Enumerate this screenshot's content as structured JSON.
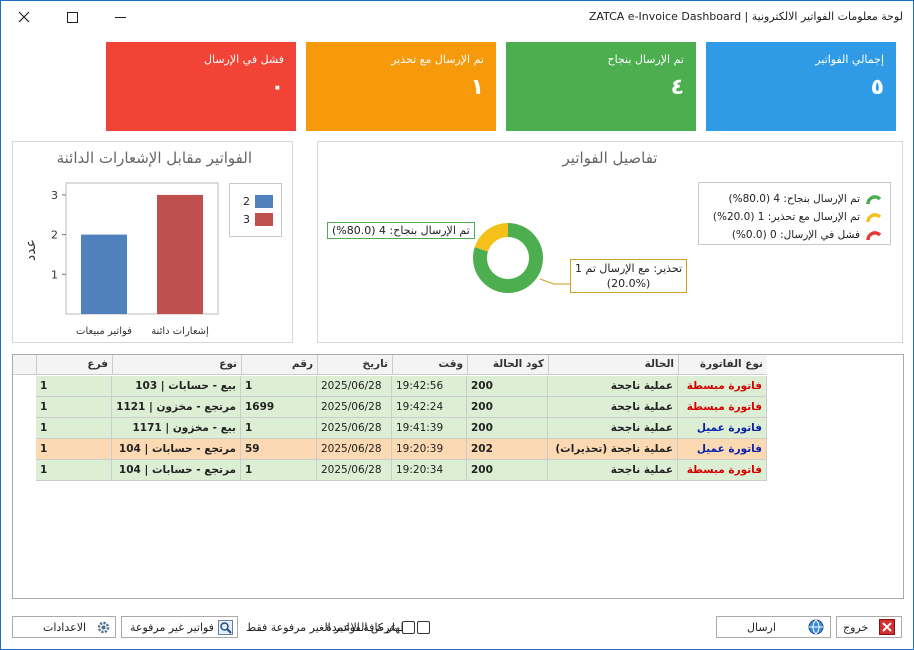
{
  "window": {
    "title": "ZATCA e-Invoice Dashboard  |  لوحة معلومات الفواتير الالكترونية"
  },
  "cards": {
    "total": {
      "label": "إجمالي الفواتير",
      "value": "٥"
    },
    "ok": {
      "label": "تم الإرسال بنجاح",
      "value": "٤"
    },
    "warn": {
      "label": "تم الإرسال مع تحذير",
      "value": "١"
    },
    "fail": {
      "label": "فشل في الإرسال",
      "value": "٠"
    }
  },
  "colors": {
    "total": "#2f9be6",
    "ok": "#4cae4e",
    "warn": "#f6990b",
    "fail": "#f14336",
    "bar_blue": "#4f81bd",
    "bar_red": "#c0504d",
    "pie_green": "#4cae4e",
    "pie_yellow": "#f3c119",
    "pie_red": "#e53935",
    "row_ok": "#dcefd4",
    "row_warn": "#fbd9b2"
  },
  "bar_chart": {
    "title": "الفواتير مقابل الإشعارات الدائنة",
    "ylabel": "عدد",
    "legend": [
      "2",
      "3"
    ],
    "chart_data": {
      "type": "bar",
      "categories": [
        "فواتير مبيعات",
        "إشعارات دائنة"
      ],
      "values": [
        2,
        3
      ],
      "ylim": [
        0,
        3.3
      ],
      "yticks": [
        "1",
        "2",
        "3"
      ],
      "grid": false,
      "legend_position": "right"
    }
  },
  "pie_chart": {
    "title": "تفاصيل الفواتير",
    "legend": [
      {
        "label": "تم الإرسال بنجاح: 4 (80.0%)",
        "icon": "green-arc-icon"
      },
      {
        "label": "تم الإرسال مع تحذير: 1 (20.0%)",
        "icon": "yellow-arc-icon"
      },
      {
        "label": "فشل في الإرسال: 0 (0.0%)",
        "icon": "red-arc-icon"
      }
    ],
    "callout_ok": "تم الإرسال بنجاح: 4 (80.0%)",
    "callout_warn_line1": "1 تحذير: مع الإرسال تم",
    "callout_warn_line2": "(20.0%)",
    "chart_data": {
      "type": "pie",
      "categories": [
        "تم الإرسال بنجاح",
        "تم الإرسال مع تحذير",
        "فشل في الإرسال"
      ],
      "values": [
        4,
        1,
        0
      ]
    }
  },
  "grid": {
    "columns": [
      "نوع الفاتورة",
      "الحالة",
      "كود الحالة",
      "وقت",
      "تاريخ",
      "رقم",
      "نوع",
      "فرع"
    ],
    "rows": [
      {
        "type": "فاتورة مبسطة",
        "type_color": "red",
        "status": "عملية ناجحة",
        "code": "200",
        "time": "19:42:56",
        "date": "2025/06/28",
        "num": "1",
        "kind": "بيع - حسابات | 103",
        "branch": "1",
        "state": "ok"
      },
      {
        "type": "فاتورة مبسطة",
        "type_color": "red",
        "status": "عملية ناجحة",
        "code": "200",
        "time": "19:42:24",
        "date": "2025/06/28",
        "num": "1699",
        "kind": "مرتجع - مخزون | 1121",
        "branch": "1",
        "state": "ok"
      },
      {
        "type": "فاتورة عميل",
        "type_color": "blue",
        "status": "عملية ناجحة",
        "code": "200",
        "time": "19:41:39",
        "date": "2025/06/28",
        "num": "1",
        "kind": "بيع - مخزون | 1171",
        "branch": "1",
        "state": "ok"
      },
      {
        "type": "فاتورة عميل",
        "type_color": "blue",
        "status": "عملية ناجحة (تحذيرات)",
        "code": "202",
        "time": "19:20:39",
        "date": "2025/06/28",
        "num": "59",
        "kind": "مرتجع - حسابات | 104",
        "branch": "1",
        "state": "warn"
      },
      {
        "type": "فاتورة مبسطة",
        "type_color": "red",
        "status": "عملية ناجحة",
        "code": "200",
        "time": "19:20:34",
        "date": "2025/06/28",
        "num": "1",
        "kind": "مرتجع - حسابات | 104",
        "branch": "1",
        "state": "ok"
      }
    ]
  },
  "footer": {
    "exit_label": "خروج",
    "send_label": "ارسال",
    "show_cols_label": "اظهار كافة الاعمدة",
    "show_unsent_label": "عرض الفواتير الغير مرفوعة فقط",
    "unsent_btn_label": "فواتير غير مرفوعة",
    "settings_label": "الاعدادات"
  }
}
